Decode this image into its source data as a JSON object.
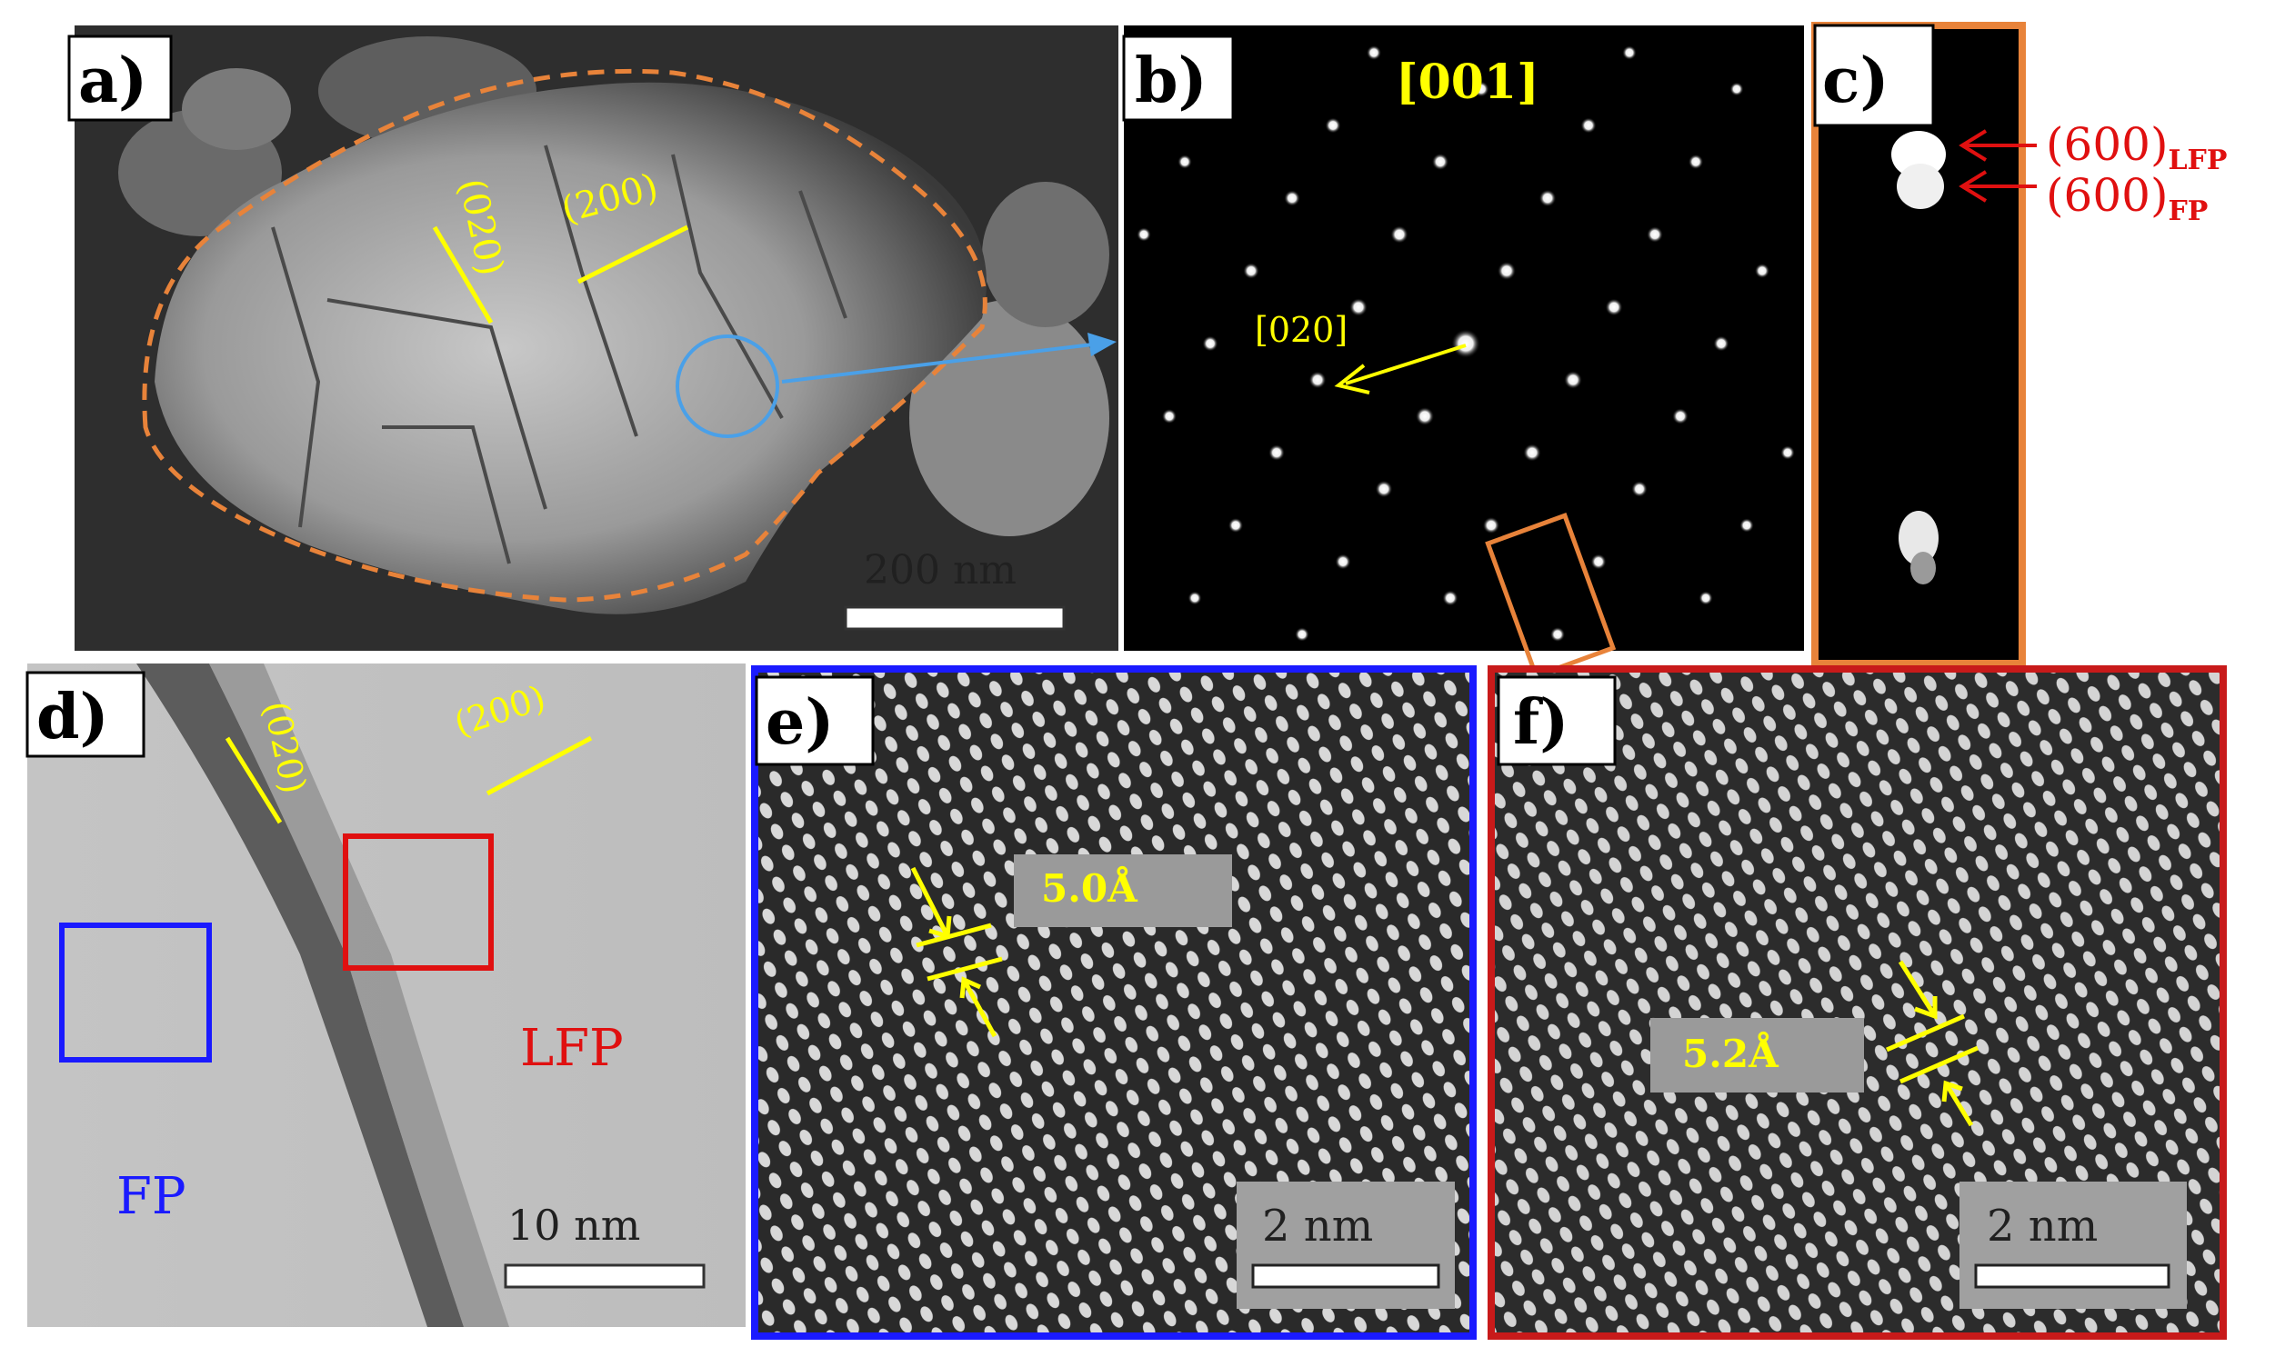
{
  "panels": {
    "a": {
      "label": "a)",
      "plane_020": "(020)",
      "plane_200": "(200)",
      "scalebar": "200 nm"
    },
    "b": {
      "label": "b)",
      "zone_axis": "[001]",
      "vector": "[020]"
    },
    "c": {
      "label": "c)",
      "spot1": "(600)",
      "spot1_sub": "LFP",
      "spot2": "(600)",
      "spot2_sub": "FP"
    },
    "d": {
      "label": "d)",
      "plane_020": "(020)",
      "plane_200": "(200)",
      "region_lfp": "LFP",
      "region_fp": "FP",
      "scalebar": "10 nm"
    },
    "e": {
      "label": "e)",
      "spacing": "5.0Å",
      "scalebar": "2 nm"
    },
    "f": {
      "label": "f)",
      "spacing": "5.2Å",
      "scalebar": "2 nm"
    }
  },
  "colors": {
    "annotation_yellow": "#ffff00",
    "outline_orange": "#e8833a",
    "fp_blue": "#1a1aff",
    "lfp_red": "#e01010",
    "circle_blue": "#4aa0e8"
  }
}
